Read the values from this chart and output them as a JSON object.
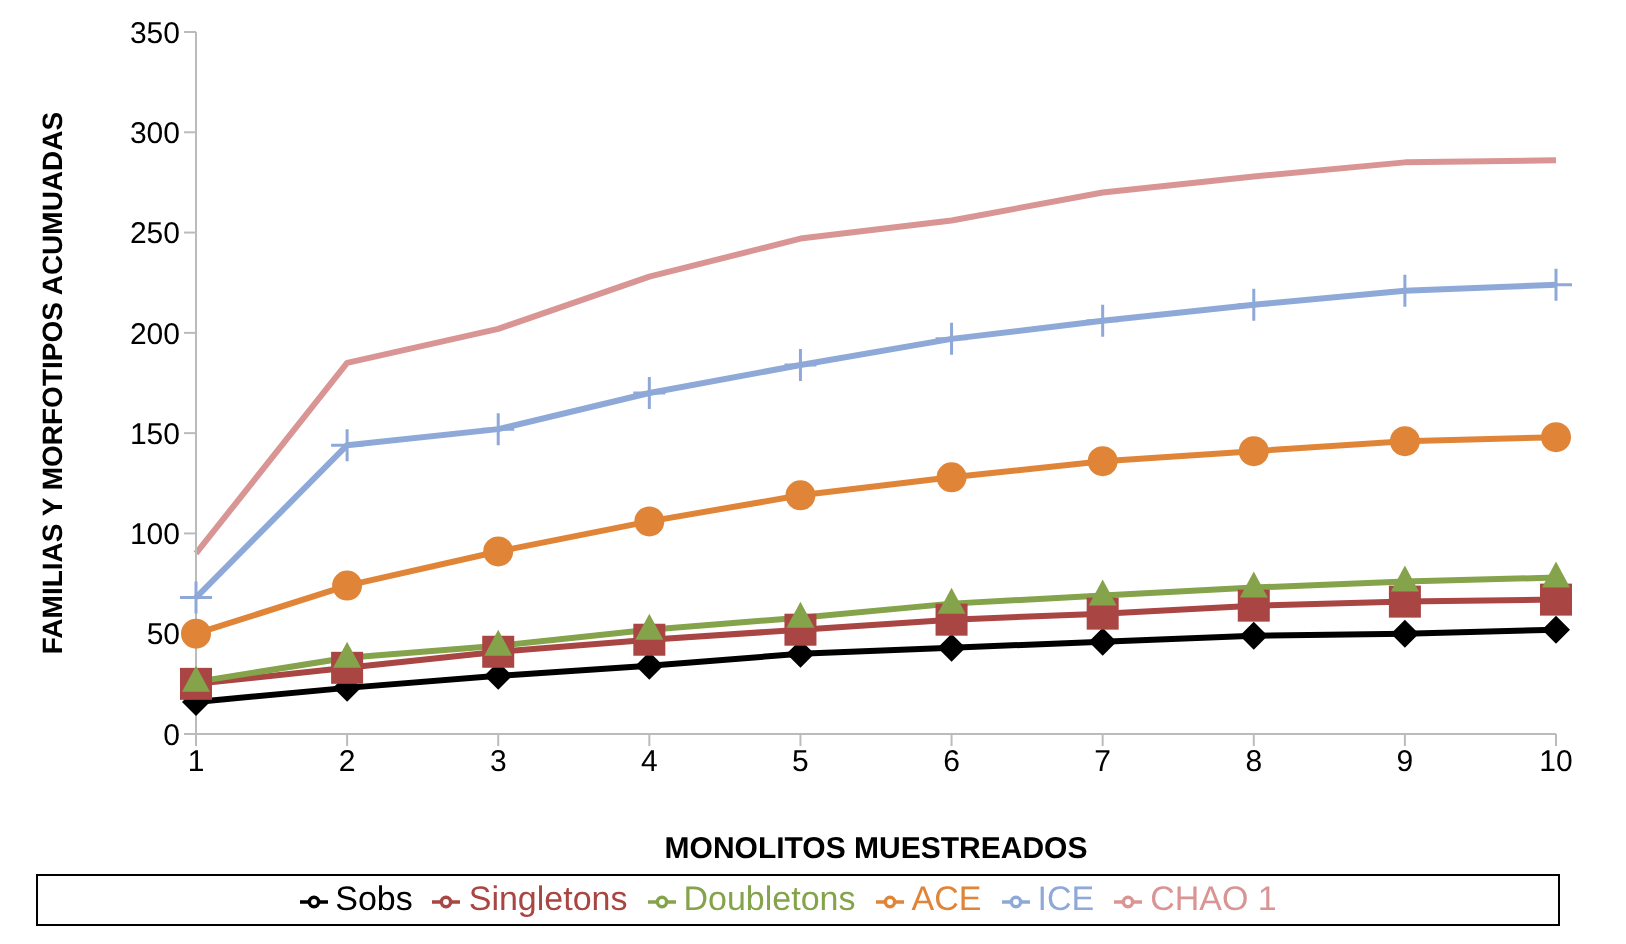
{
  "chart_data": {
    "type": "line",
    "xlabel": "MONOLITOS MUESTREADOS",
    "ylabel": "FAMILIAS Y MORFOTIPOS ACUMUADAS",
    "categories": [
      "1",
      "2",
      "3",
      "4",
      "5",
      "6",
      "7",
      "8",
      "9",
      "10"
    ],
    "ylim": [
      0,
      350
    ],
    "yticks": [
      0,
      50,
      100,
      150,
      200,
      250,
      300,
      350
    ],
    "grid": false,
    "legend": "bottom",
    "series": [
      {
        "name": "Sobs",
        "color": "#000000",
        "marker": "diamond",
        "values": [
          16,
          23,
          29,
          34,
          40,
          43,
          46,
          49,
          50,
          52
        ]
      },
      {
        "name": "Singletons",
        "color": "#a94542",
        "marker": "square",
        "values": [
          25,
          33,
          41,
          47,
          52,
          57,
          60,
          64,
          66,
          67
        ]
      },
      {
        "name": "Doubletons",
        "color": "#84a34b",
        "marker": "triangle",
        "values": [
          26,
          38,
          44,
          52,
          58,
          65,
          69,
          73,
          76,
          78
        ]
      },
      {
        "name": "ACE",
        "color": "#e08537",
        "marker": "circle",
        "values": [
          50,
          74,
          91,
          106,
          119,
          128,
          136,
          141,
          146,
          148
        ]
      },
      {
        "name": "ICE",
        "color": "#8ea9d8",
        "marker": "cross",
        "values": [
          68,
          144,
          152,
          170,
          184,
          197,
          206,
          214,
          221,
          224
        ]
      },
      {
        "name": "CHAO 1",
        "color": "#d99594",
        "marker": "none",
        "values": [
          90,
          185,
          202,
          228,
          247,
          256,
          270,
          278,
          285,
          286
        ]
      }
    ]
  }
}
